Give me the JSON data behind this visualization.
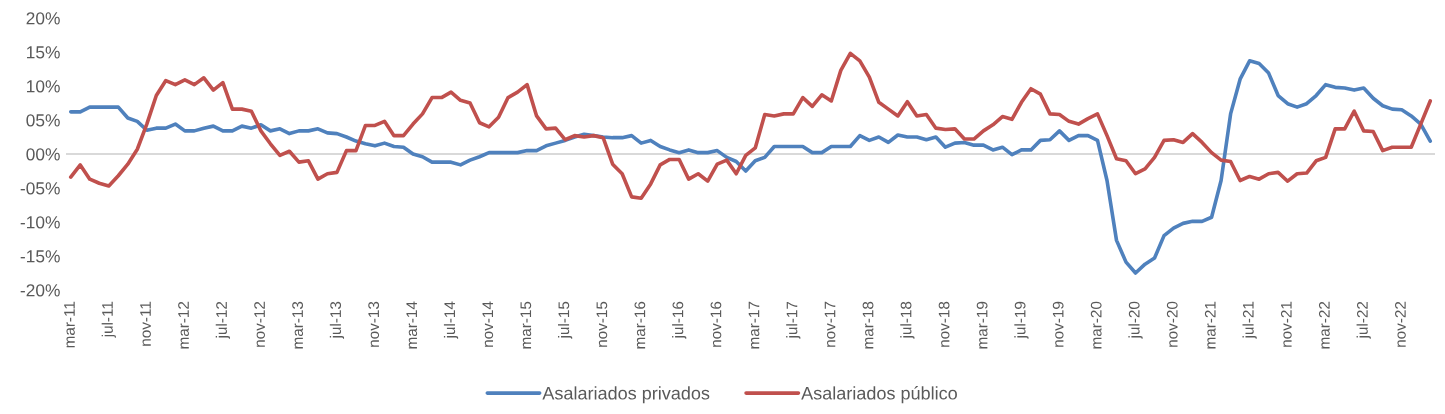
{
  "chart_data": {
    "type": "line",
    "categories": [
      "mar-11",
      null,
      null,
      null,
      "jul-11",
      null,
      null,
      null,
      "nov-11",
      null,
      null,
      null,
      "mar-12",
      null,
      null,
      null,
      "jul-12",
      null,
      null,
      null,
      "nov-12",
      null,
      null,
      null,
      "mar-13",
      null,
      null,
      null,
      "jul-13",
      null,
      null,
      null,
      "nov-13",
      null,
      null,
      null,
      "mar-14",
      null,
      null,
      null,
      "jul-14",
      null,
      null,
      null,
      "nov-14",
      null,
      null,
      null,
      "mar-15",
      null,
      null,
      null,
      "jul-15",
      null,
      null,
      null,
      "nov-15",
      null,
      null,
      null,
      "mar-16",
      null,
      null,
      null,
      "jul-16",
      null,
      null,
      null,
      "nov-16",
      null,
      null,
      null,
      "mar-17",
      null,
      null,
      null,
      "jul-17",
      null,
      null,
      null,
      "nov-17",
      null,
      null,
      null,
      "mar-18",
      null,
      null,
      null,
      "jul-18",
      null,
      null,
      null,
      "nov-18",
      null,
      null,
      null,
      "mar-19",
      null,
      null,
      null,
      "jul-19",
      null,
      null,
      null,
      "nov-19",
      null,
      null,
      null,
      "mar-20",
      null,
      null,
      null,
      "jul-20",
      null,
      null,
      null,
      "nov-20",
      null,
      null,
      null,
      "mar-21",
      null,
      null,
      null,
      "jul-21",
      null,
      null,
      null,
      "nov-21",
      null,
      null,
      null,
      "mar-22",
      null,
      null,
      null,
      "jul-22",
      null,
      null,
      null,
      "nov-22",
      null,
      null,
      null
    ],
    "series": [
      {
        "name": "Asalariados privados",
        "color": "#4f81bd",
        "values": [
          6.2,
          6.2,
          6.9,
          6.9,
          6.9,
          6.9,
          5.3,
          4.8,
          3.5,
          3.8,
          3.8,
          4.4,
          3.4,
          3.4,
          3.8,
          4.1,
          3.4,
          3.4,
          4.1,
          3.8,
          4.3,
          3.4,
          3.7,
          3.0,
          3.4,
          3.4,
          3.7,
          3.1,
          3.0,
          2.5,
          1.9,
          1.5,
          1.2,
          1.6,
          1.1,
          1.0,
          0.0,
          -0.4,
          -1.2,
          -1.2,
          -1.2,
          -1.6,
          -0.9,
          -0.4,
          0.2,
          0.2,
          0.2,
          0.2,
          0.5,
          0.5,
          1.2,
          1.6,
          2.0,
          2.5,
          2.9,
          2.7,
          2.5,
          2.4,
          2.4,
          2.7,
          1.6,
          2.0,
          1.1,
          0.6,
          0.2,
          0.6,
          0.2,
          0.2,
          0.5,
          -0.5,
          -1.1,
          -2.5,
          -1.0,
          -0.5,
          1.1,
          1.1,
          1.1,
          1.1,
          0.2,
          0.2,
          1.1,
          1.1,
          1.1,
          2.7,
          2.0,
          2.5,
          1.7,
          2.8,
          2.5,
          2.5,
          2.1,
          2.5,
          1.0,
          1.6,
          1.7,
          1.3,
          1.3,
          0.6,
          1.0,
          -0.1,
          0.6,
          0.6,
          2.0,
          2.1,
          3.4,
          2.0,
          2.7,
          2.7,
          2.0,
          -3.9,
          -12.7,
          -15.9,
          -17.5,
          -16.2,
          -15.3,
          -12.0,
          -10.9,
          -10.2,
          -9.9,
          -9.9,
          -9.3,
          -3.9,
          5.9,
          11.0,
          13.7,
          13.3,
          11.9,
          8.6,
          7.4,
          6.9,
          7.4,
          8.6,
          10.2,
          9.8,
          9.7,
          9.4,
          9.7,
          8.2,
          7.1,
          6.6,
          6.5,
          5.6,
          4.4,
          1.9
        ]
      },
      {
        "name": "Asalariados público",
        "color": "#c0504d",
        "values": [
          -3.4,
          -1.6,
          -3.7,
          -4.3,
          -4.7,
          -3.2,
          -1.5,
          0.7,
          4.4,
          8.6,
          10.8,
          10.2,
          10.9,
          10.2,
          11.2,
          9.4,
          10.5,
          6.6,
          6.6,
          6.3,
          3.4,
          1.5,
          -0.2,
          0.4,
          -1.2,
          -1.0,
          -3.7,
          -2.9,
          -2.7,
          0.5,
          0.5,
          4.2,
          4.2,
          4.8,
          2.7,
          2.7,
          4.4,
          5.9,
          8.3,
          8.3,
          9.1,
          7.9,
          7.5,
          4.6,
          4.0,
          5.4,
          8.3,
          9.1,
          10.2,
          5.6,
          3.7,
          3.8,
          2.1,
          2.7,
          2.5,
          2.7,
          2.4,
          -1.5,
          -2.9,
          -6.3,
          -6.5,
          -4.4,
          -1.6,
          -0.8,
          -0.8,
          -3.7,
          -2.9,
          -4.0,
          -1.5,
          -0.9,
          -2.9,
          -0.2,
          0.9,
          5.8,
          5.6,
          5.9,
          5.9,
          8.3,
          7.0,
          8.7,
          7.8,
          12.3,
          14.8,
          13.7,
          11.3,
          7.6,
          6.6,
          5.6,
          7.7,
          5.6,
          5.8,
          3.8,
          3.6,
          3.7,
          2.2,
          2.2,
          3.4,
          4.3,
          5.5,
          5.1,
          7.6,
          9.6,
          8.8,
          5.9,
          5.8,
          4.8,
          4.4,
          5.2,
          5.9,
          2.7,
          -0.7,
          -1.0,
          -2.9,
          -2.2,
          -0.5,
          2.0,
          2.1,
          1.7,
          3.0,
          1.7,
          0.2,
          -0.9,
          -1.1,
          -3.9,
          -3.3,
          -3.7,
          -2.9,
          -2.7,
          -4.0,
          -2.9,
          -2.8,
          -1.0,
          -0.5,
          3.7,
          3.7,
          6.3,
          3.4,
          3.3,
          0.5,
          1.0,
          1.0,
          1.0,
          4.4,
          7.8
        ]
      }
    ],
    "ylim": [
      -20,
      20
    ],
    "yticks": [
      {
        "value": -20,
        "label": "-20%"
      },
      {
        "value": -15,
        "label": "-15%"
      },
      {
        "value": -10,
        "label": "-10%"
      },
      {
        "value": -5,
        "label": "-05%"
      },
      {
        "value": 0,
        "label": "00%"
      },
      {
        "value": 5,
        "label": "05%"
      },
      {
        "value": 10,
        "label": "10%"
      },
      {
        "value": 15,
        "label": "15%"
      },
      {
        "value": 20,
        "label": "20%"
      }
    ],
    "ref_lines": [
      {
        "axis": "y",
        "value": 0,
        "color": "#d9d9d9"
      }
    ],
    "legend": "bottom"
  }
}
